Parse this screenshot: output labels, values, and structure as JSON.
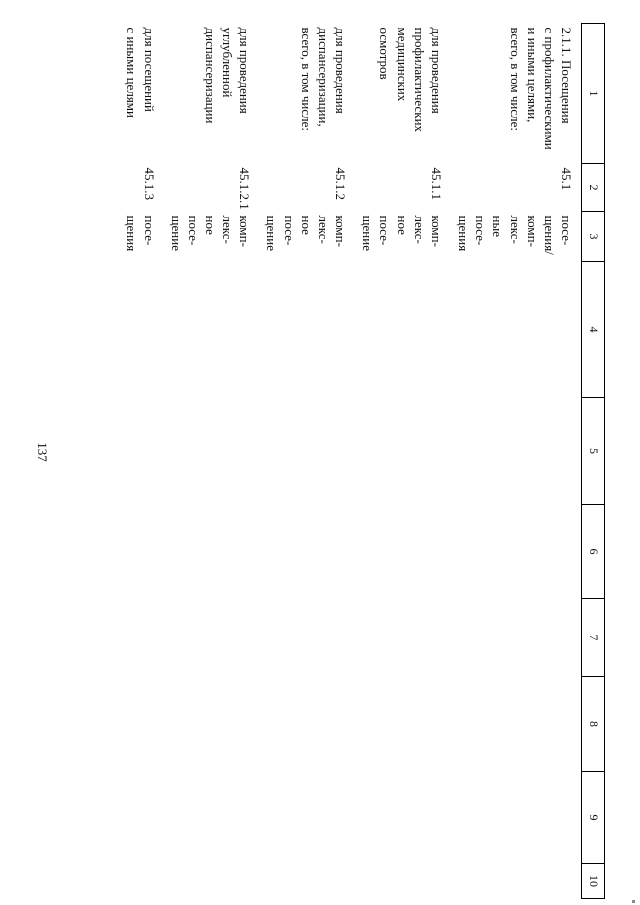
{
  "page": {
    "number": "137"
  },
  "table": {
    "headers": [
      "1",
      "2",
      "3",
      "4",
      "5",
      "6",
      "7",
      "8",
      "9",
      "10"
    ],
    "rows": [
      {
        "name": [
          "2.1.1. Посещения",
          "с профилактическими",
          "и иными целями,",
          "всего, в том числе:"
        ],
        "code": "45.1",
        "unit": [
          "посе-",
          "щения/",
          "комп-",
          "лекс-",
          "ные",
          "посе-",
          "щения"
        ]
      },
      {
        "name": [
          "для проведения",
          "профилактических",
          "медицинских",
          "осмотров"
        ],
        "code": "45.1.1",
        "unit": [
          "комп-",
          "лекс-",
          "ное",
          "посе-",
          "щение"
        ]
      },
      {
        "name": [
          "для проведения",
          "диспансеризации,",
          "всего, в том числе:"
        ],
        "code": "45.1.2",
        "unit": [
          "комп-",
          "лекс-",
          "ное",
          "посе-",
          "щение"
        ]
      },
      {
        "name": [
          "для проведения",
          "углубленной",
          "диспансеризации"
        ],
        "code": "45.1.2.1",
        "unit": [
          "комп-",
          "лекс-",
          "ное",
          "посе-",
          "щение"
        ]
      },
      {
        "name": [
          "для посещений",
          "с иными целями"
        ],
        "code": "45.1.3",
        "unit": [
          "посе-",
          "щения"
        ]
      }
    ]
  }
}
